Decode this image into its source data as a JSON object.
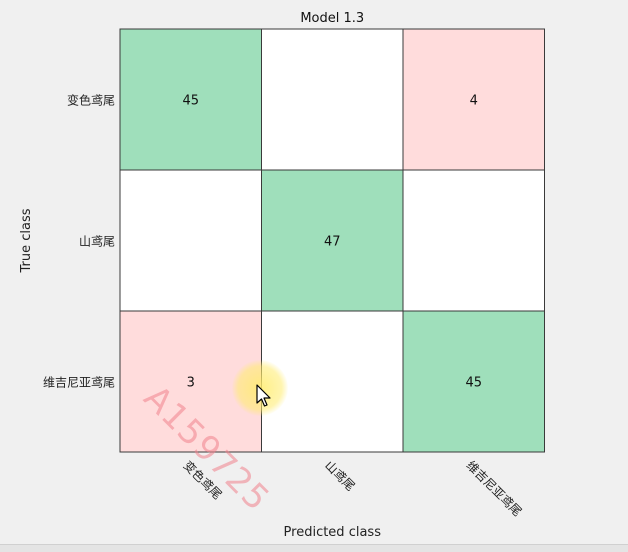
{
  "chart_data": {
    "type": "heatmap",
    "title": "Model 1.3",
    "xlabel": "Predicted class",
    "ylabel": "True class",
    "row_labels": [
      "变色鸢尾",
      "山鸢尾",
      "维吉尼亚鸢尾"
    ],
    "col_labels": [
      "变色鸢尾",
      "山鸢尾",
      "维吉尼亚鸢尾"
    ],
    "matrix": [
      [
        45,
        null,
        4
      ],
      [
        null,
        47,
        null
      ],
      [
        3,
        null,
        45
      ]
    ],
    "colors": {
      "correct": "#9fdfbb",
      "incorrect": "#ffdcdc",
      "empty": "#ffffff"
    }
  },
  "watermark": "A159725"
}
